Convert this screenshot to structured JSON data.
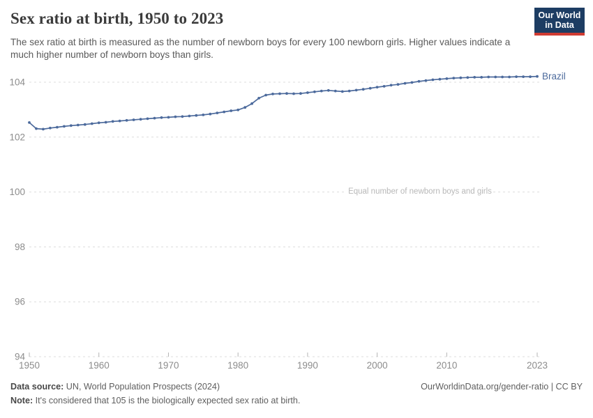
{
  "header": {
    "title": "Sex ratio at birth, 1950 to 2023",
    "subtitle": "The sex ratio at birth is measured as the number of newborn boys for every 100 newborn girls. Higher values indicate a much higher number of newborn boys than girls.",
    "logo": {
      "line1": "Our World",
      "line2": "in Data",
      "bg_color": "#1d3d63",
      "accent_color": "#cf3b32"
    }
  },
  "chart_data": {
    "type": "line",
    "title": "Sex ratio at birth, 1950 to 2023",
    "xlabel": "",
    "ylabel": "",
    "xlim": [
      1950,
      2023
    ],
    "ylim": [
      94,
      104.55
    ],
    "grid": "horizontal-dashed",
    "legend_position": "inline-right-of-line",
    "x_ticks": [
      1950,
      1960,
      1970,
      1980,
      1990,
      2000,
      2010,
      2023
    ],
    "y_ticks": [
      94,
      96,
      98,
      100,
      102,
      104
    ],
    "annotation": {
      "text": "Equal number of newborn boys and girls",
      "y_value": 100,
      "color": "#b8b8b8"
    },
    "axis_label_color": "#8c8c8c",
    "gridline_color": "#dcdcdc",
    "series": [
      {
        "name": "Brazil",
        "color": "#4c6a9c",
        "x": [
          1950,
          1951,
          1952,
          1953,
          1954,
          1955,
          1956,
          1957,
          1958,
          1959,
          1960,
          1961,
          1962,
          1963,
          1964,
          1965,
          1966,
          1967,
          1968,
          1969,
          1970,
          1971,
          1972,
          1973,
          1974,
          1975,
          1976,
          1977,
          1978,
          1979,
          1980,
          1981,
          1982,
          1983,
          1984,
          1985,
          1986,
          1987,
          1988,
          1989,
          1990,
          1991,
          1992,
          1993,
          1994,
          1995,
          1996,
          1997,
          1998,
          1999,
          2000,
          2001,
          2002,
          2003,
          2004,
          2005,
          2006,
          2007,
          2008,
          2009,
          2010,
          2011,
          2012,
          2013,
          2014,
          2015,
          2016,
          2017,
          2018,
          2019,
          2020,
          2021,
          2022,
          2023
        ],
        "values": [
          102.53,
          102.31,
          102.29,
          102.33,
          102.36,
          102.39,
          102.42,
          102.44,
          102.46,
          102.49,
          102.52,
          102.54,
          102.57,
          102.59,
          102.61,
          102.63,
          102.65,
          102.67,
          102.69,
          102.71,
          102.72,
          102.74,
          102.75,
          102.77,
          102.79,
          102.81,
          102.84,
          102.88,
          102.92,
          102.96,
          102.99,
          103.08,
          103.22,
          103.42,
          103.53,
          103.57,
          103.58,
          103.59,
          103.58,
          103.59,
          103.62,
          103.65,
          103.68,
          103.7,
          103.68,
          103.66,
          103.68,
          103.71,
          103.74,
          103.78,
          103.82,
          103.85,
          103.89,
          103.92,
          103.96,
          103.99,
          104.03,
          104.06,
          104.09,
          104.11,
          104.13,
          104.15,
          104.16,
          104.17,
          104.18,
          104.18,
          104.19,
          104.19,
          104.19,
          104.19,
          104.2,
          104.2,
          104.2,
          104.21
        ]
      }
    ]
  },
  "footer": {
    "source_label": "Data source:",
    "source_text": " UN, World Population Prospects (2024)",
    "note_label": "Note:",
    "note_text": " It's considered that 105 is the biologically expected sex ratio at birth.",
    "link": "OurWorldinData.org/gender-ratio | CC BY"
  }
}
